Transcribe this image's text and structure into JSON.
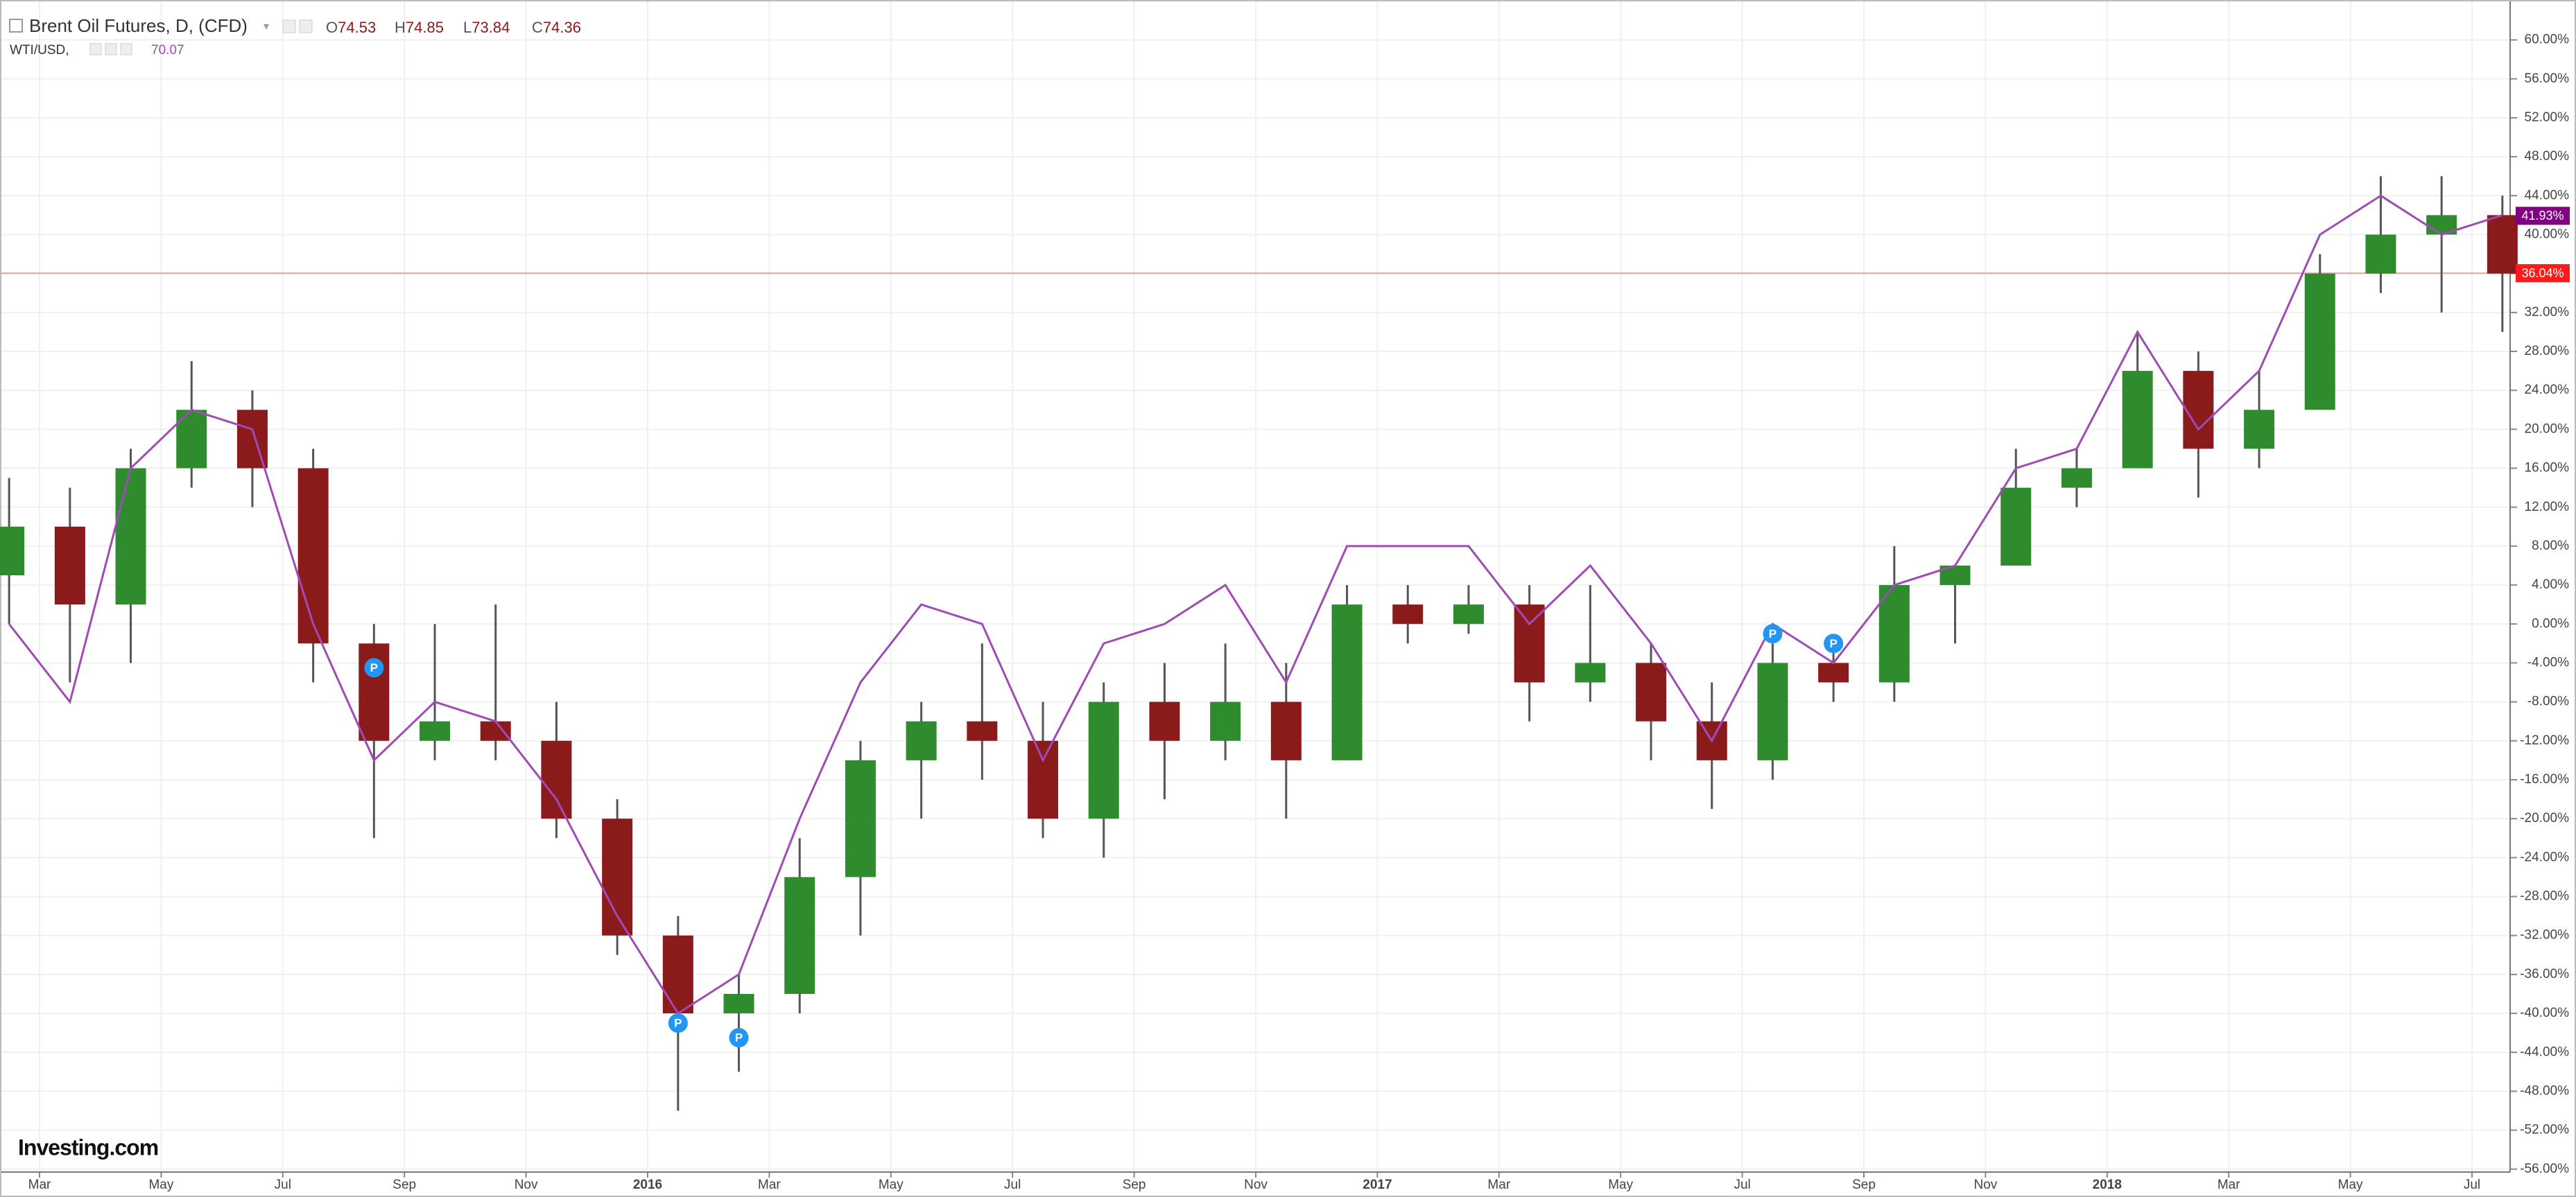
{
  "header": {
    "symbol": "Brent Oil Futures, D, (CFD)",
    "ohlc": [
      {
        "label": "O",
        "value": "74.53"
      },
      {
        "label": "H",
        "value": "74.85"
      },
      {
        "label": "L",
        "value": "73.84"
      },
      {
        "label": "C",
        "value": "74.36"
      }
    ],
    "compare_symbol": "WTI/USD,",
    "compare_value": "70.07"
  },
  "logo": "Investing.com",
  "chart_data": {
    "type": "candlestick",
    "x": [
      "2015-02",
      "2015-03",
      "2015-04",
      "2015-05",
      "2015-06",
      "2015-07",
      "2015-08",
      "2015-09",
      "2015-10",
      "2015-11",
      "2015-12",
      "2016-01",
      "2016-02",
      "2016-03",
      "2016-04",
      "2016-05",
      "2016-06",
      "2016-07",
      "2016-08",
      "2016-09",
      "2016-10",
      "2016-11",
      "2016-12",
      "2017-01",
      "2017-02",
      "2017-03",
      "2017-04",
      "2017-05",
      "2017-06",
      "2017-07",
      "2017-08",
      "2017-09",
      "2017-10",
      "2017-11",
      "2017-12",
      "2018-01",
      "2018-02",
      "2018-03",
      "2018-04",
      "2018-05",
      "2018-06",
      "2018-07"
    ],
    "series": [
      {
        "name": "Brent Oil Futures, D, (CFD)",
        "up_color": "#2e8b2e",
        "down_color": "#8b1a1a",
        "open": [
          5,
          10,
          2,
          16,
          22,
          16,
          -2,
          -12,
          -10,
          -12,
          -20,
          -32,
          -40,
          -38,
          -26,
          -14,
          -10,
          -12,
          -20,
          -8,
          -12,
          -8,
          -14,
          2,
          0,
          2,
          -6,
          -4,
          -10,
          -14,
          -4,
          -6,
          4,
          6,
          14,
          16,
          26,
          18,
          22,
          36,
          40,
          42
        ],
        "high": [
          15,
          14,
          18,
          27,
          24,
          18,
          0,
          0,
          2,
          -8,
          -18,
          -30,
          -36,
          -22,
          -12,
          -8,
          -2,
          -8,
          -6,
          -4,
          -2,
          -4,
          4,
          4,
          4,
          4,
          4,
          -2,
          -6,
          -2,
          -2,
          8,
          6,
          18,
          18,
          30,
          28,
          26,
          38,
          46,
          46,
          44
        ],
        "low": [
          0,
          -6,
          -4,
          14,
          12,
          -6,
          -22,
          -14,
          -14,
          -22,
          -34,
          -50,
          -46,
          -40,
          -32,
          -20,
          -16,
          -22,
          -24,
          -18,
          -14,
          -20,
          -14,
          -2,
          -1,
          -10,
          -8,
          -14,
          -19,
          -16,
          -8,
          -8,
          -2,
          6,
          12,
          16,
          13,
          16,
          22,
          34,
          32,
          30
        ],
        "close": [
          10,
          2,
          16,
          22,
          16,
          -2,
          -12,
          -10,
          -12,
          -20,
          -32,
          -40,
          -38,
          -26,
          -14,
          -10,
          -12,
          -20,
          -8,
          -12,
          -8,
          -14,
          2,
          0,
          2,
          -6,
          -4,
          -10,
          -14,
          -4,
          -6,
          4,
          6,
          14,
          16,
          26,
          18,
          22,
          36,
          40,
          42,
          36
        ]
      },
      {
        "name": "WTI/USD,",
        "type": "line",
        "color": "#a04bb5",
        "values": [
          0,
          -8,
          16,
          22,
          20,
          0,
          -14,
          -8,
          -10,
          -18,
          -30,
          -40,
          -36,
          -20,
          -6,
          2,
          0,
          -14,
          -2,
          0,
          4,
          -6,
          8,
          8,
          8,
          0,
          6,
          -2,
          -12,
          0,
          -4,
          4,
          6,
          16,
          18,
          30,
          20,
          26,
          40,
          44,
          40,
          42
        ]
      }
    ],
    "last_labels": [
      {
        "value": 41.93,
        "label": "41.93%",
        "color": "#800080"
      },
      {
        "value": 36.04,
        "label": "36.04%",
        "color": "#ff1a1a"
      }
    ],
    "hline_color": "#f4a0a0",
    "events": [
      {
        "x": "2015-08",
        "y": -4.5,
        "label": "P"
      },
      {
        "x": "2016-01",
        "y": -41,
        "label": "P"
      },
      {
        "x": "2016-02",
        "y": -42.5,
        "label": "P"
      },
      {
        "x": "2017-07",
        "y": -1,
        "label": "P"
      },
      {
        "x": "2017-08",
        "y": -2,
        "label": "P"
      }
    ],
    "ylim": [
      -56.3,
      64.1
    ],
    "yticks": [
      {
        "value": 60,
        "label": "60.00%"
      },
      {
        "value": 56,
        "label": "56.00%"
      },
      {
        "value": 52,
        "label": "52.00%"
      },
      {
        "value": 48,
        "label": "48.00%"
      },
      {
        "value": 44,
        "label": "44.00%"
      },
      {
        "value": 40,
        "label": "40.00%"
      },
      {
        "value": 36,
        "label": "36.00%"
      },
      {
        "value": 32,
        "label": "32.00%"
      },
      {
        "value": 28,
        "label": "28.00%"
      },
      {
        "value": 24,
        "label": "24.00%"
      },
      {
        "value": 20,
        "label": "20.00%"
      },
      {
        "value": 16,
        "label": "16.00%"
      },
      {
        "value": 12,
        "label": "12.00%"
      },
      {
        "value": 8,
        "label": "8.00%"
      },
      {
        "value": 4,
        "label": "4.00%"
      },
      {
        "value": 0,
        "label": "0.00%"
      },
      {
        "value": -4,
        "label": "-4.00%"
      },
      {
        "value": -8,
        "label": "-8.00%"
      },
      {
        "value": -12,
        "label": "-12.00%"
      },
      {
        "value": -16,
        "label": "-16.00%"
      },
      {
        "value": -20,
        "label": "-20.00%"
      },
      {
        "value": -24,
        "label": "-24.00%"
      },
      {
        "value": -28,
        "label": "-28.00%"
      },
      {
        "value": -32,
        "label": "-32.00%"
      },
      {
        "value": -36,
        "label": "-36.00%"
      },
      {
        "value": -40,
        "label": "-40.00%"
      },
      {
        "value": -44,
        "label": "-44.00%"
      },
      {
        "value": -48,
        "label": "-48.00%"
      },
      {
        "value": -52,
        "label": "-52.00%"
      },
      {
        "value": -56,
        "label": "-56.00%"
      }
    ],
    "xticks": [
      {
        "value": "2015-03",
        "label": "Mar"
      },
      {
        "value": "2015-05",
        "label": "May"
      },
      {
        "value": "2015-07",
        "label": "Jul"
      },
      {
        "value": "2015-09",
        "label": "Sep"
      },
      {
        "value": "2015-11",
        "label": "Nov"
      },
      {
        "value": "2016-01",
        "label": "2016"
      },
      {
        "value": "2016-03",
        "label": "Mar"
      },
      {
        "value": "2016-05",
        "label": "May"
      },
      {
        "value": "2016-07",
        "label": "Jul"
      },
      {
        "value": "2016-09",
        "label": "Sep"
      },
      {
        "value": "2016-11",
        "label": "Nov"
      },
      {
        "value": "2017-01",
        "label": "2017"
      },
      {
        "value": "2017-03",
        "label": "Mar"
      },
      {
        "value": "2017-05",
        "label": "May"
      },
      {
        "value": "2017-07",
        "label": "Jul"
      },
      {
        "value": "2017-09",
        "label": "Sep"
      },
      {
        "value": "2017-11",
        "label": "Nov"
      },
      {
        "value": "2018-01",
        "label": "2018"
      },
      {
        "value": "2018-03",
        "label": "Mar"
      },
      {
        "value": "2018-05",
        "label": "May"
      },
      {
        "value": "2018-07",
        "label": "Jul"
      }
    ],
    "grid": true
  }
}
